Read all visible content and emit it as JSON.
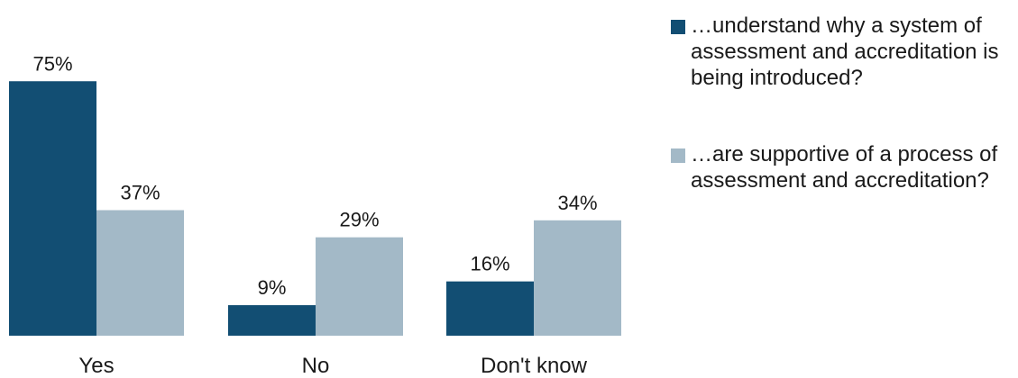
{
  "chart_data": {
    "type": "bar",
    "categories": [
      "Yes",
      "No",
      "Don't know"
    ],
    "series": [
      {
        "name": "…understand why a system of assessment and accreditation is being introduced?",
        "values": [
          75,
          9,
          16
        ],
        "labels": [
          "75%",
          "9%",
          "16%"
        ],
        "color": "#124e73"
      },
      {
        "name": "…are supportive of a process of assessment and accreditation?",
        "values": [
          37,
          29,
          34
        ],
        "labels": [
          "37%",
          "29%",
          "34%"
        ],
        "color": "#a3b9c7"
      }
    ],
    "title": "",
    "xlabel": "",
    "ylabel": "",
    "ylim": [
      0,
      100
    ],
    "grid": false,
    "legend_position": "right"
  }
}
